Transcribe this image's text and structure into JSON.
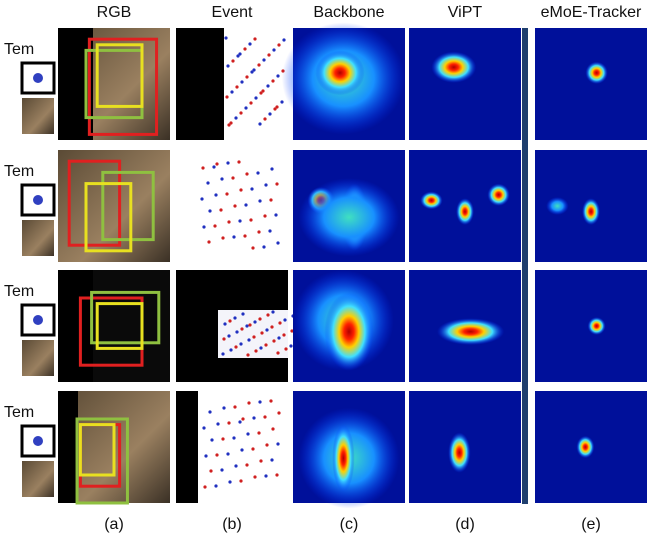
{
  "columns": [
    {
      "header": "RGB",
      "caption": "(a)"
    },
    {
      "header": "Event",
      "caption": "(b)"
    },
    {
      "header": "Backbone",
      "caption": "(c)"
    },
    {
      "header": "ViPT",
      "caption": "(d)"
    },
    {
      "header": "eMoE-Tracker",
      "caption": "(e)"
    }
  ],
  "rows": [
    {
      "label": "Tem"
    },
    {
      "label": "Tem"
    },
    {
      "label": "Tem"
    },
    {
      "label": "Tem"
    }
  ]
}
